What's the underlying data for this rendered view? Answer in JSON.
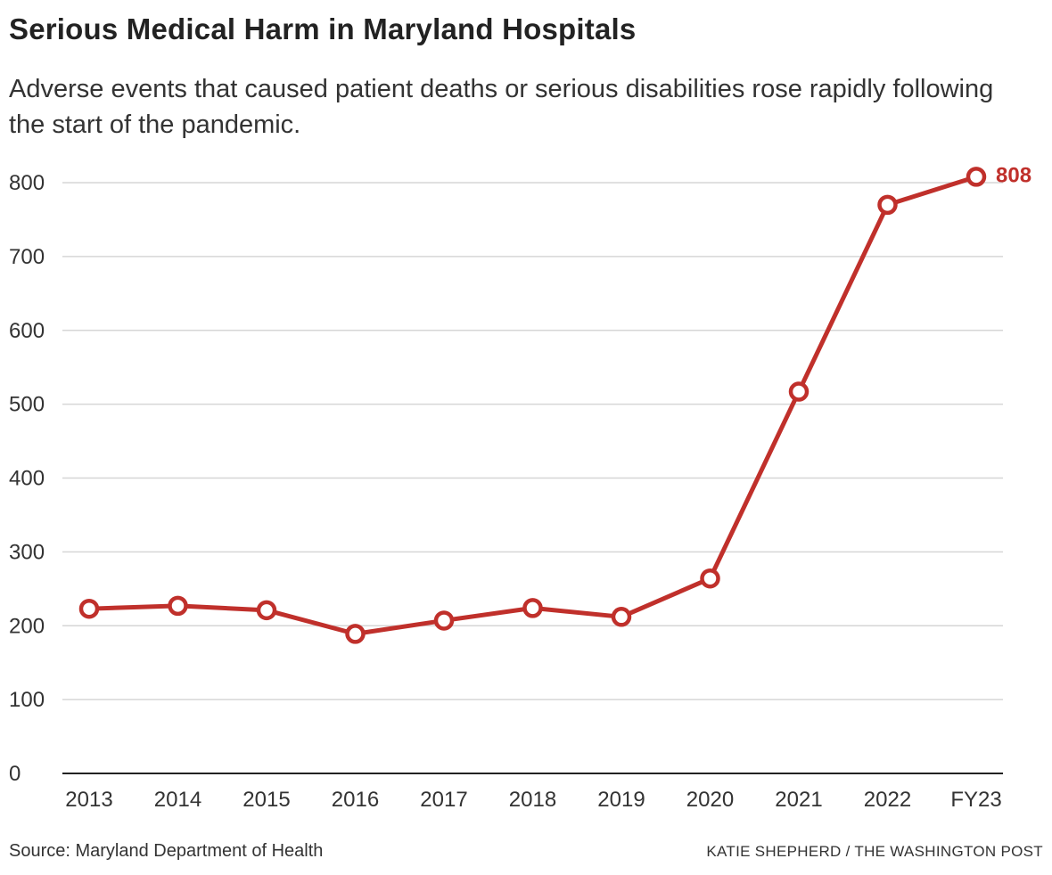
{
  "header": {
    "title": "Serious Medical Harm in Maryland Hospitals",
    "subtitle": "Adverse events that caused patient deaths or serious disabilities rose rapidly following the start of the pandemic."
  },
  "footer": {
    "source": "Source: Maryland Department of Health",
    "credit": "KATIE SHEPHERD / THE WASHINGTON POST"
  },
  "chart_data": {
    "type": "line",
    "title": "Serious Medical Harm in Maryland Hospitals",
    "subtitle": "Adverse events that caused patient deaths or serious disabilities rose rapidly following the start of the pandemic.",
    "xlabel": "",
    "ylabel": "",
    "categories": [
      "2013",
      "2014",
      "2015",
      "2016",
      "2017",
      "2018",
      "2019",
      "2020",
      "2021",
      "2022",
      "FY23"
    ],
    "series": [
      {
        "values": [
          223,
          227,
          221,
          189,
          207,
          224,
          212,
          264,
          517,
          770,
          808
        ],
        "color": "#c0302b"
      }
    ],
    "end_label": "808",
    "ylim": [
      0,
      800
    ],
    "yticks": [
      0,
      100,
      200,
      300,
      400,
      500,
      600,
      700,
      800
    ],
    "grid": true,
    "legend": "none",
    "colors": {
      "line": "#c0302b",
      "grid": "#d6d6d6",
      "axis": "#222222"
    }
  }
}
